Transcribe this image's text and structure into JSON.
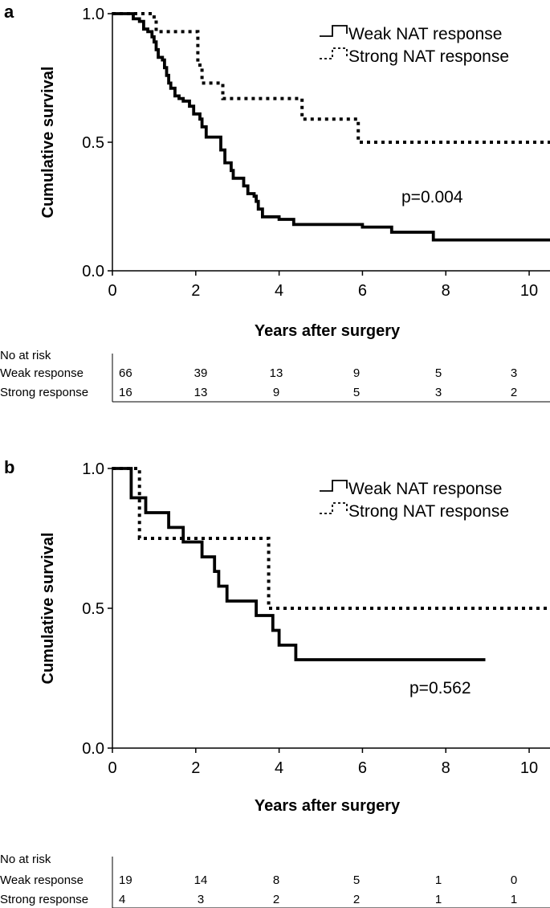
{
  "chart_data": [
    {
      "type": "line",
      "subtype": "kaplan-meier",
      "panel": "a",
      "xlabel": "Years after surgery",
      "ylabel": "Cumulative survival",
      "xlim": [
        0,
        10.5
      ],
      "ylim": [
        0,
        1
      ],
      "x_ticks": [
        "0",
        "2",
        "4",
        "6",
        "8",
        "10"
      ],
      "y_ticks": [
        "0.0",
        "0.5",
        "1.0"
      ],
      "p_value": "p=0.004",
      "legend": {
        "weak": "Weak NAT response",
        "strong": "Strong NAT response"
      },
      "series": [
        {
          "name": "Weak NAT response",
          "style": "solid",
          "points": [
            [
              0,
              1.0
            ],
            [
              0.3,
              1.0
            ],
            [
              0.5,
              0.98
            ],
            [
              0.65,
              0.97
            ],
            [
              0.75,
              0.94
            ],
            [
              0.85,
              0.93
            ],
            [
              0.95,
              0.91
            ],
            [
              1.0,
              0.89
            ],
            [
              1.05,
              0.86
            ],
            [
              1.1,
              0.83
            ],
            [
              1.2,
              0.82
            ],
            [
              1.25,
              0.79
            ],
            [
              1.3,
              0.76
            ],
            [
              1.35,
              0.73
            ],
            [
              1.4,
              0.71
            ],
            [
              1.5,
              0.68
            ],
            [
              1.6,
              0.67
            ],
            [
              1.7,
              0.66
            ],
            [
              1.85,
              0.64
            ],
            [
              1.95,
              0.61
            ],
            [
              2.1,
              0.59
            ],
            [
              2.15,
              0.56
            ],
            [
              2.25,
              0.52
            ],
            [
              2.55,
              0.52
            ],
            [
              2.6,
              0.47
            ],
            [
              2.7,
              0.42
            ],
            [
              2.85,
              0.39
            ],
            [
              2.9,
              0.36
            ],
            [
              3.1,
              0.36
            ],
            [
              3.15,
              0.33
            ],
            [
              3.25,
              0.3
            ],
            [
              3.4,
              0.29
            ],
            [
              3.45,
              0.27
            ],
            [
              3.5,
              0.24
            ],
            [
              3.6,
              0.21
            ],
            [
              4.0,
              0.2
            ],
            [
              4.35,
              0.18
            ],
            [
              6.0,
              0.17
            ],
            [
              6.7,
              0.15
            ],
            [
              7.7,
              0.12
            ],
            [
              10.5,
              0.12
            ]
          ]
        },
        {
          "name": "Strong NAT response",
          "style": "dotted",
          "points": [
            [
              0,
              1.0
            ],
            [
              0.85,
              1.0
            ],
            [
              1.0,
              0.98
            ],
            [
              1.05,
              0.93
            ],
            [
              1.9,
              0.93
            ],
            [
              2.05,
              0.8
            ],
            [
              2.15,
              0.73
            ],
            [
              2.55,
              0.73
            ],
            [
              2.65,
              0.67
            ],
            [
              4.5,
              0.67
            ],
            [
              4.55,
              0.59
            ],
            [
              5.85,
              0.59
            ],
            [
              5.9,
              0.5
            ],
            [
              10.5,
              0.5
            ]
          ]
        }
      ],
      "risk_table": {
        "header": "No at risk",
        "rows": [
          {
            "label": "Weak response",
            "values": [
              "66",
              "39",
              "13",
              "9",
              "5",
              "3"
            ]
          },
          {
            "label": "Strong response",
            "values": [
              "16",
              "13",
              "9",
              "5",
              "3",
              "2"
            ]
          }
        ]
      }
    },
    {
      "type": "line",
      "subtype": "kaplan-meier",
      "panel": "b",
      "xlabel": "Years after surgery",
      "ylabel": "Cumulative survival",
      "xlim": [
        0,
        10.5
      ],
      "ylim": [
        0,
        1
      ],
      "x_ticks": [
        "0",
        "2",
        "4",
        "6",
        "8",
        "10"
      ],
      "y_ticks": [
        "0.0",
        "0.5",
        "1.0"
      ],
      "p_value": "p=0.562",
      "legend": {
        "weak": "Weak NAT response",
        "strong": "Strong NAT response"
      },
      "series": [
        {
          "name": "Weak NAT response",
          "style": "solid",
          "points": [
            [
              0,
              1.0
            ],
            [
              0.45,
              1.0
            ],
            [
              0.45,
              0.895
            ],
            [
              0.8,
              0.895
            ],
            [
              0.8,
              0.842
            ],
            [
              1.35,
              0.842
            ],
            [
              1.35,
              0.789
            ],
            [
              1.7,
              0.789
            ],
            [
              1.7,
              0.737
            ],
            [
              2.15,
              0.737
            ],
            [
              2.15,
              0.684
            ],
            [
              2.45,
              0.684
            ],
            [
              2.45,
              0.632
            ],
            [
              2.55,
              0.632
            ],
            [
              2.55,
              0.579
            ],
            [
              2.75,
              0.579
            ],
            [
              2.75,
              0.526
            ],
            [
              3.45,
              0.526
            ],
            [
              3.45,
              0.474
            ],
            [
              3.85,
              0.474
            ],
            [
              3.85,
              0.421
            ],
            [
              4.0,
              0.421
            ],
            [
              4.0,
              0.368
            ],
            [
              4.4,
              0.368
            ],
            [
              4.4,
              0.316
            ],
            [
              8.95,
              0.316
            ]
          ]
        },
        {
          "name": "Strong NAT response",
          "style": "dotted",
          "points": [
            [
              0,
              1.0
            ],
            [
              0.55,
              1.0
            ],
            [
              0.65,
              0.75
            ],
            [
              3.7,
              0.75
            ],
            [
              3.75,
              0.5
            ],
            [
              10.5,
              0.5
            ]
          ]
        }
      ],
      "risk_table": {
        "header": "No at risk",
        "rows": [
          {
            "label": "Weak response",
            "values": [
              "19",
              "14",
              "8",
              "5",
              "1",
              "0"
            ]
          },
          {
            "label": "Strong response",
            "values": [
              "4",
              "3",
              "2",
              "2",
              "1",
              "1"
            ]
          }
        ]
      }
    }
  ]
}
